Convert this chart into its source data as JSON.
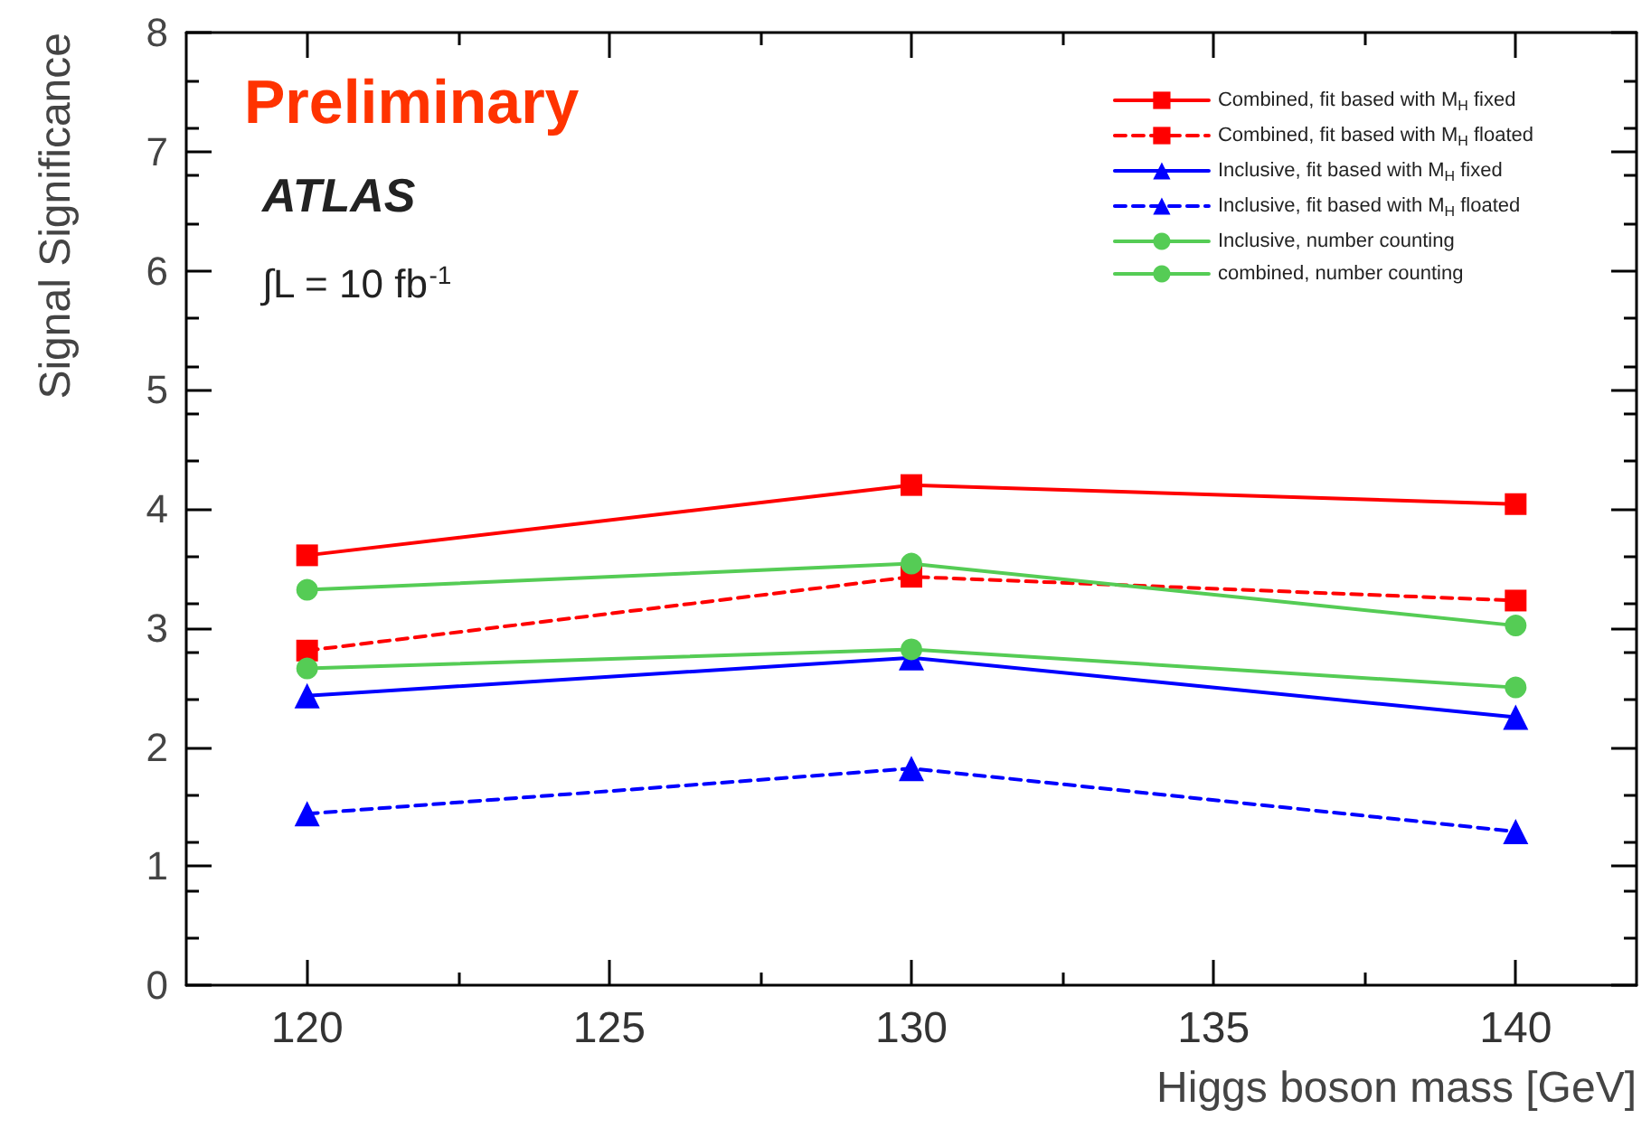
{
  "chart_data": {
    "type": "line",
    "xlabel": "Higgs boson mass [GeV]",
    "ylabel": "Signal Significance",
    "x": [
      120,
      130,
      140
    ],
    "xlim": [
      118,
      142
    ],
    "xticks": [
      120,
      125,
      130,
      135,
      140
    ],
    "ylim": [
      0,
      8
    ],
    "yticks": [
      0,
      1,
      2,
      3,
      4,
      5,
      6,
      7,
      8
    ],
    "grid": false,
    "legend": "top right",
    "annotations": [
      "Preliminary",
      "ATLAS",
      "∫L = 10 fb$^{-1}$"
    ],
    "series": [
      {
        "name": "Combined, fit based with M$_{H}$ fixed",
        "color": "#ff0000",
        "marker": "square",
        "line_style": "solid",
        "values": [
          3.61,
          4.2,
          4.04
        ]
      },
      {
        "name": "Combined, fit based with M$_{H}$ floated",
        "color": "#ff0000",
        "marker": "square",
        "line_style": "dashed",
        "values": [
          2.81,
          3.43,
          3.23
        ]
      },
      {
        "name": "Inclusive, fit based with M$_{H}$ fixed",
        "color": "#0000ff",
        "marker": "triangle",
        "line_style": "solid",
        "values": [
          2.43,
          2.75,
          2.25
        ]
      },
      {
        "name": "Inclusive, fit based with M$_{H}$ floated",
        "color": "#0000ff",
        "marker": "triangle",
        "line_style": "dashed",
        "values": [
          1.44,
          1.82,
          1.29
        ]
      },
      {
        "name": "Inclusive, number counting",
        "color": "#55cc55",
        "marker": "circle",
        "line_style": "solid",
        "values": [
          2.66,
          2.82,
          2.5
        ]
      },
      {
        "name": "combined, number counting",
        "color": "#55cc55",
        "marker": "circle",
        "line_style": "solid",
        "values": [
          3.32,
          3.54,
          3.02
        ]
      }
    ]
  }
}
